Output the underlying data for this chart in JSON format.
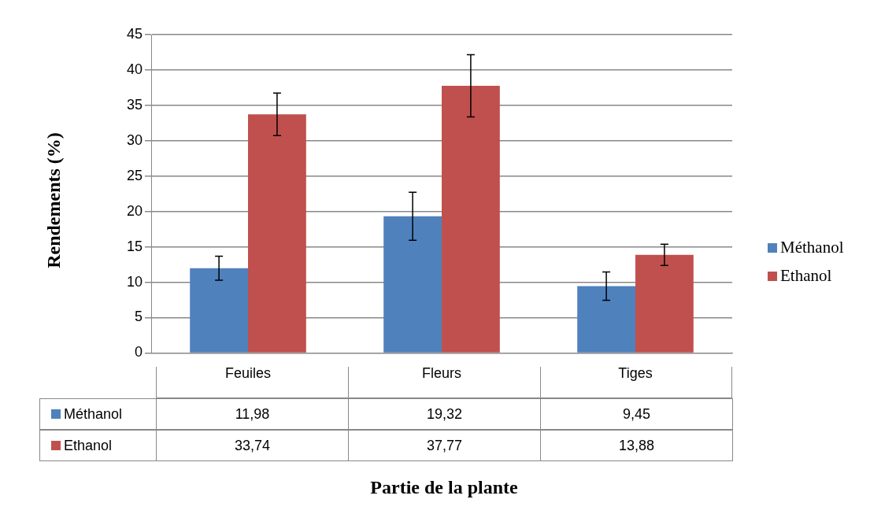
{
  "chart_data": {
    "type": "bar",
    "annotations": [
      "Partie de la plante"
    ],
    "ylabel": "Rendements (%)",
    "categories": [
      "Feuiles",
      "Fleurs",
      "Tiges"
    ],
    "series": [
      {
        "name": "Méthanol",
        "color": "#4f81bd",
        "values": [
          11.98,
          19.32,
          9.45
        ],
        "value_labels": [
          "11,98",
          "19,32",
          "9,45"
        ],
        "errors": [
          1.7,
          3.4,
          2
        ]
      },
      {
        "name": "Ethanol",
        "color": "#c0504d",
        "values": [
          33.74,
          37.77,
          13.88
        ],
        "value_labels": [
          "33,74",
          "37,77",
          "13,88"
        ],
        "errors": [
          3,
          4.4,
          1.5
        ]
      }
    ],
    "ylim": [
      0,
      45
    ],
    "yticks": [
      0,
      5,
      10,
      15,
      20,
      25,
      30,
      35,
      40,
      45
    ],
    "grid": "y",
    "legend": "right"
  }
}
